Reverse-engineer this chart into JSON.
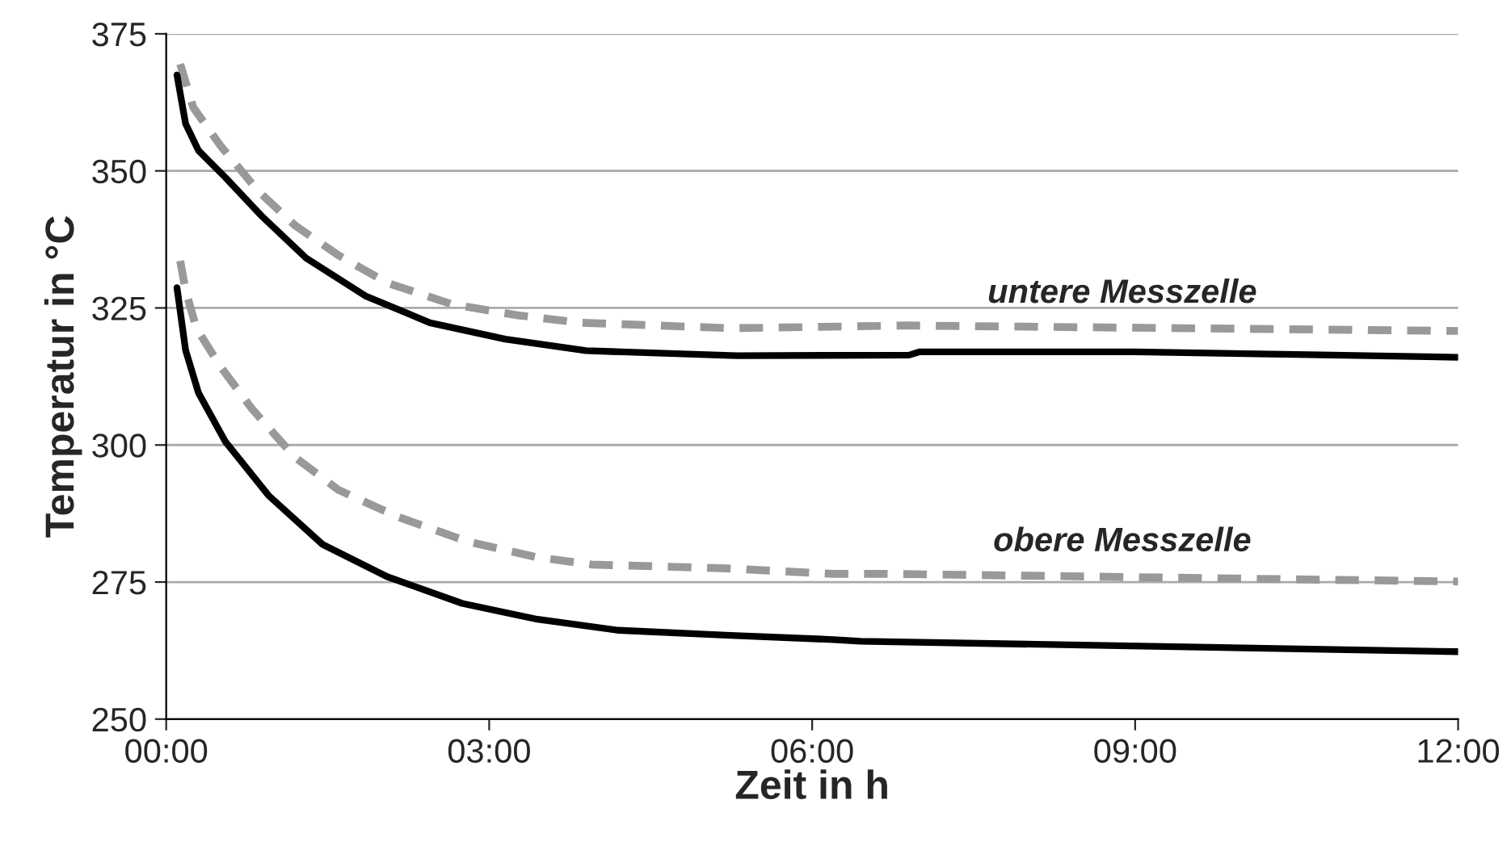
{
  "chart_data": {
    "type": "line",
    "xlabel": "Zeit in h",
    "ylabel": "Temperatur in °C",
    "xlim": [
      0,
      12
    ],
    "xticks": [
      {
        "value": 0,
        "label": "00:00"
      },
      {
        "value": 3,
        "label": "03:00"
      },
      {
        "value": 6,
        "label": "06:00"
      },
      {
        "value": 9,
        "label": "09:00"
      },
      {
        "value": 12,
        "label": "12:00"
      }
    ],
    "ylim": [
      250,
      375
    ],
    "yticks": [
      250,
      275,
      300,
      325,
      350,
      375
    ],
    "grid": "y",
    "legend": false,
    "marker": "none",
    "series": [
      {
        "color": "#999999",
        "line_style": "dashed",
        "x": [
          0.13,
          0.25,
          0.5,
          0.85,
          1.2,
          1.6,
          2.05,
          2.65,
          3.25,
          3.85,
          5.25,
          6.9,
          12
        ],
        "values": [
          369.5,
          361.6,
          354.7,
          346.4,
          340,
          334.6,
          329.6,
          325.7,
          323.7,
          322.3,
          321.3,
          321.8,
          320.8
        ]
      },
      {
        "color": "#000000",
        "line_style": "solid",
        "x": [
          0.1,
          0.18,
          0.3,
          0.55,
          0.88,
          1.3,
          1.85,
          2.45,
          3.15,
          3.9,
          5.3,
          6.9,
          7.0,
          9.0,
          10.5,
          12
        ],
        "values": [
          367.5,
          358.6,
          353.7,
          348.8,
          341.9,
          334.1,
          327.2,
          322.3,
          319.3,
          317.2,
          316.3,
          316.4,
          317,
          317,
          316.5,
          316
        ]
      },
      {
        "color": "#999999",
        "line_style": "dashed",
        "x": [
          0.13,
          0.18,
          0.28,
          0.5,
          0.8,
          1.2,
          1.6,
          2.15,
          2.8,
          3.45,
          3.95,
          5.2,
          6.2,
          6.7,
          12
        ],
        "values": [
          333.6,
          328.2,
          321.3,
          314.4,
          306.5,
          297.7,
          291.8,
          286.9,
          282.4,
          279.5,
          278.2,
          277.5,
          276.5,
          276.5,
          275.1
        ]
      },
      {
        "color": "#000000",
        "line_style": "solid",
        "x": [
          0.1,
          0.18,
          0.3,
          0.55,
          0.95,
          1.45,
          2.05,
          2.75,
          3.45,
          4.2,
          5.2,
          6.2,
          6.45,
          12
        ],
        "values": [
          328.7,
          317.3,
          309.5,
          300.6,
          290.8,
          281.9,
          276,
          271.1,
          268.2,
          266.2,
          265.3,
          264.5,
          264.2,
          262.3
        ]
      }
    ],
    "annotations": [
      "untere Messzelle",
      "obere Messzelle"
    ]
  }
}
